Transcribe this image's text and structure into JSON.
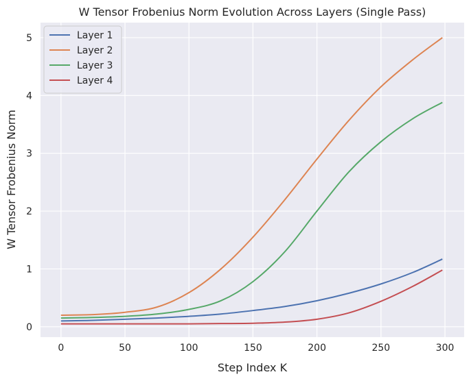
{
  "chart_data": {
    "type": "line",
    "title": "W Tensor Frobenius Norm Evolution Across Layers (Single Pass)",
    "xlabel": "Step Index K",
    "ylabel": "W Tensor Frobenius Norm",
    "xlim": [
      -16,
      315
    ],
    "ylim": [
      -0.18,
      5.26
    ],
    "xticks": [
      0,
      50,
      100,
      150,
      200,
      250,
      300
    ],
    "yticks": [
      0,
      1,
      2,
      3,
      4,
      5
    ],
    "grid": true,
    "legend_position": "upper left",
    "x": [
      0,
      25,
      50,
      75,
      100,
      125,
      150,
      175,
      200,
      225,
      250,
      275,
      298
    ],
    "series": [
      {
        "name": "Layer 1",
        "color": "#4c72b0",
        "values": [
          0.1,
          0.11,
          0.13,
          0.15,
          0.18,
          0.22,
          0.28,
          0.35,
          0.45,
          0.58,
          0.74,
          0.94,
          1.17
        ]
      },
      {
        "name": "Layer 2",
        "color": "#dd8452",
        "values": [
          0.2,
          0.21,
          0.25,
          0.34,
          0.59,
          1.0,
          1.55,
          2.2,
          2.9,
          3.57,
          4.15,
          4.62,
          5.0
        ]
      },
      {
        "name": "Layer 3",
        "color": "#55a868",
        "values": [
          0.15,
          0.16,
          0.18,
          0.22,
          0.3,
          0.45,
          0.78,
          1.3,
          2.0,
          2.68,
          3.2,
          3.6,
          3.88
        ]
      },
      {
        "name": "Layer 4",
        "color": "#c44e52",
        "values": [
          0.05,
          0.05,
          0.05,
          0.05,
          0.05,
          0.055,
          0.06,
          0.08,
          0.13,
          0.24,
          0.44,
          0.7,
          0.98
        ]
      }
    ]
  }
}
